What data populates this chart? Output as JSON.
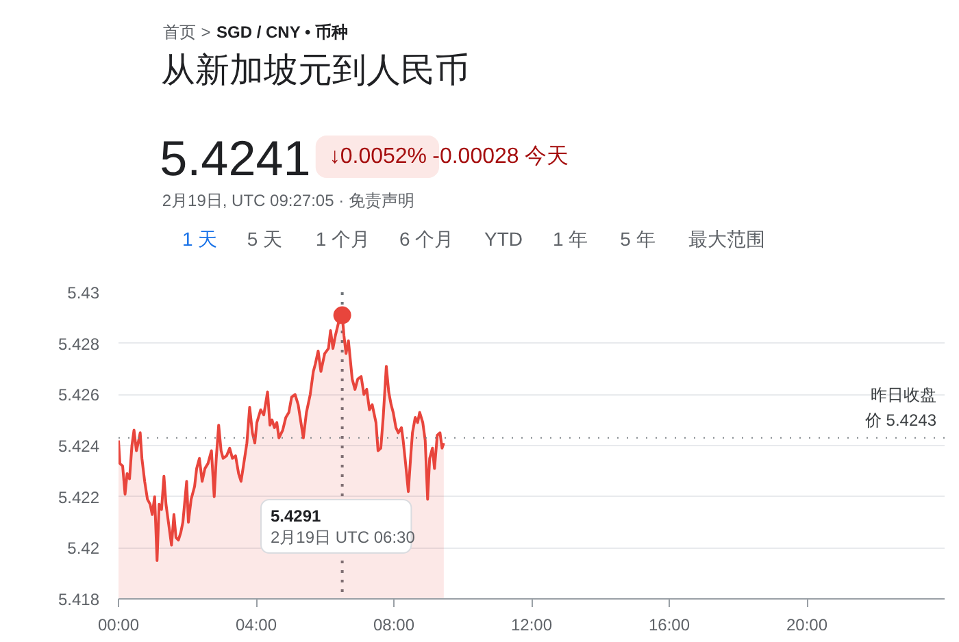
{
  "chart_data": {
    "type": "area",
    "title": "从新加坡元到人民币",
    "annotations": [
      "首页",
      ">",
      "SGD / CNY • 币种",
      "5.4241",
      "↓0.0052%",
      "-0.00028 今天",
      "2月19日, UTC 09:27:05 · 免责声明",
      "1 天",
      "5 天",
      "1 个月",
      "6 个月",
      "YTD",
      "1 年",
      "5 年",
      "最大范围",
      "5.4291\n2月19日 UTC 06:30"
    ],
    "x": [
      0,
      0.04,
      0.12,
      0.19,
      0.25,
      0.32,
      0.39,
      0.45,
      0.52,
      0.57,
      0.63,
      0.68,
      0.76,
      0.84,
      0.92,
      0.98,
      1.05,
      1.12,
      1.18,
      1.25,
      1.32,
      1.38,
      1.45,
      1.54,
      1.61,
      1.67,
      1.74,
      1.81,
      1.87,
      1.98,
      2.03,
      2.11,
      2.21,
      2.27,
      2.35,
      2.43,
      2.51,
      2.6,
      2.7,
      2.78,
      2.84,
      2.91,
      2.98,
      3.04,
      3.14,
      3.23,
      3.31,
      3.4,
      3.49,
      3.56,
      3.64,
      3.73,
      3.81,
      3.89,
      3.96,
      4.02,
      4.13,
      4.22,
      4.33,
      4.4,
      4.46,
      4.53,
      4.6,
      4.66,
      4.77,
      4.86,
      4.95,
      5.03,
      5.13,
      5.22,
      5.3,
      5.37,
      5.46,
      5.57,
      5.66,
      5.72,
      5.8,
      5.88,
      5.99,
      6.1,
      6.16,
      6.23,
      6.3,
      6.39,
      6.5,
      6.55,
      6.61,
      6.68,
      6.79,
      6.87,
      6.95,
      7.05,
      7.13,
      7.21,
      7.29,
      7.37,
      7.48,
      7.54,
      7.62,
      7.69,
      7.78,
      7.85,
      7.92,
      7.98,
      8.06,
      8.13,
      8.22,
      8.27,
      8.34,
      8.42,
      8.49,
      8.54,
      8.62,
      8.69,
      8.75,
      8.84,
      8.91,
      8.98,
      9.04,
      9.12,
      9.18,
      9.26,
      9.34,
      9.4,
      9.45
    ],
    "series": [
      {
        "color": "#e8453c",
        "values": [
          5.4242,
          5.4233,
          5.4232,
          5.4221,
          5.4229,
          5.4227,
          5.424,
          5.4246,
          5.4238,
          5.4241,
          5.4245,
          5.4235,
          5.4226,
          5.4219,
          5.4217,
          5.4213,
          5.422,
          5.4195,
          5.4217,
          5.4215,
          5.4228,
          5.4217,
          5.421,
          5.4201,
          5.4213,
          5.4204,
          5.4203,
          5.4206,
          5.421,
          5.4226,
          5.421,
          5.4219,
          5.4224,
          5.4231,
          5.4235,
          5.4226,
          5.4231,
          5.4233,
          5.4238,
          5.422,
          5.4235,
          5.4248,
          5.4238,
          5.4235,
          5.4236,
          5.4239,
          5.4235,
          5.4236,
          5.4229,
          5.4226,
          5.4233,
          5.4241,
          5.4255,
          5.4245,
          5.4241,
          5.4249,
          5.4254,
          5.4252,
          5.4261,
          5.4248,
          5.425,
          5.4247,
          5.4249,
          5.4243,
          5.4246,
          5.4251,
          5.4253,
          5.4259,
          5.426,
          5.4256,
          5.4249,
          5.4243,
          5.4253,
          5.426,
          5.4269,
          5.4272,
          5.4277,
          5.4269,
          5.4276,
          5.4278,
          5.4285,
          5.4278,
          5.4283,
          5.4288,
          5.4291,
          5.4283,
          5.4276,
          5.4281,
          5.4266,
          5.4262,
          5.4266,
          5.4267,
          5.426,
          5.4262,
          5.4254,
          5.4256,
          5.4249,
          5.4238,
          5.4239,
          5.4251,
          5.4271,
          5.4261,
          5.4256,
          5.4253,
          5.4247,
          5.4245,
          5.4247,
          5.4242,
          5.4233,
          5.4222,
          5.4236,
          5.4245,
          5.4251,
          5.4249,
          5.4253,
          5.4249,
          5.4242,
          5.4219,
          5.4235,
          5.4239,
          5.4231,
          5.4244,
          5.4245,
          5.4239,
          5.4241
        ]
      },
      {
        "type": "scatter",
        "x": [
          6.5
        ],
        "color": "#e8453c",
        "values": [
          5.4291
        ]
      }
    ],
    "xlim": [
      0,
      24
    ],
    "xticks": [
      {
        "value": 0,
        "label": "00:00"
      },
      {
        "value": 4,
        "label": "04:00"
      },
      {
        "value": 8,
        "label": "08:00"
      },
      {
        "value": 12,
        "label": "12:00"
      },
      {
        "value": 16,
        "label": "16:00"
      },
      {
        "value": 20,
        "label": "20:00"
      }
    ],
    "ylim": [
      5.418,
      5.43
    ],
    "yticks": [
      5.418,
      5.42,
      5.422,
      5.424,
      5.426,
      5.428,
      5.43
    ],
    "grid": "y",
    "ref_lines": [
      {
        "axis": "y",
        "value": 5.4243,
        "label": "昨日收盘价 5.4243",
        "color": "#80868b",
        "line_style": "dotted"
      },
      {
        "axis": "x",
        "value": 6.5,
        "color": "#70757a",
        "line_style": "dotted"
      }
    ]
  }
}
